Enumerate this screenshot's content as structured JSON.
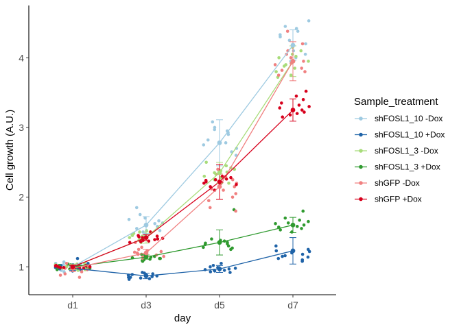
{
  "chart_data": {
    "type": "line",
    "title": "",
    "xlabel": "day",
    "ylabel": "Cell growth (A.U.)",
    "categories": [
      "d1",
      "d3",
      "d5",
      "d7"
    ],
    "ylim": [
      0.6,
      4.75
    ],
    "yticks": [
      1,
      2,
      3,
      4
    ],
    "grid": false,
    "legend": {
      "title": "Sample_treatment",
      "placement": "right"
    },
    "series": [
      {
        "name": "shFOSL1_10 -Dox",
        "color": "#9ecae1",
        "mean": [
          1.0,
          1.6,
          2.78,
          4.18
        ],
        "err": [
          0.04,
          0.12,
          0.33,
          0.22
        ],
        "points": [
          [
            0.97,
            1.01,
            1.03,
            1.05,
            0.95,
            0.99,
            1.02,
            1.07,
            0.93,
            1.0,
            1.04,
            0.98
          ],
          [
            1.85,
            1.75,
            1.68,
            1.63,
            1.58,
            1.55,
            1.52,
            1.5,
            1.47,
            1.62,
            1.66,
            1.7
          ],
          [
            3.0,
            2.97,
            2.95,
            2.93,
            2.9,
            2.75,
            2.7,
            2.65,
            2.6,
            2.78,
            3.08,
            2.82
          ],
          [
            4.53,
            4.45,
            4.42,
            4.38,
            4.3,
            4.2,
            4.1,
            4.05,
            4.0,
            3.95,
            4.33,
            4.25
          ]
        ]
      },
      {
        "name": "shFOSL1_10 +Dox",
        "color": "#1f63a8",
        "mean": [
          0.98,
          0.87,
          0.97,
          1.23
        ],
        "err": [
          0.03,
          0.04,
          0.05,
          0.19
        ],
        "points": [
          [
            0.96,
            0.98,
            1.0,
            1.02,
            0.95,
            1.12,
            0.97,
            1.03,
            0.99,
            1.05,
            0.94,
            1.01
          ],
          [
            0.82,
            0.84,
            0.85,
            0.86,
            0.88,
            0.9,
            0.92,
            0.87,
            0.83,
            0.91,
            0.85,
            0.89
          ],
          [
            0.92,
            0.94,
            0.95,
            0.96,
            0.98,
            1.0,
            1.02,
            1.05,
            0.93,
            0.97,
            0.99,
            0.95
          ],
          [
            1.08,
            1.12,
            1.15,
            1.18,
            1.2,
            1.22,
            1.25,
            1.3,
            1.14,
            1.16,
            1.1,
            1.23
          ]
        ]
      },
      {
        "name": "shFOSL1_3 -Dox",
        "color": "#a8dc7a",
        "mean": [
          1.0,
          1.42,
          2.35,
          3.95
        ],
        "err": [
          0.04,
          0.08,
          0.15,
          0.22
        ],
        "points": [
          [
            0.99,
            1.0,
            1.02,
            1.04,
            0.96,
            0.98,
            1.05,
            1.01,
            0.97,
            1.03,
            1.0,
            0.95
          ],
          [
            1.38,
            1.4,
            1.43,
            1.45,
            1.48,
            1.5,
            1.35,
            1.42,
            1.46,
            1.39,
            1.52,
            1.44
          ],
          [
            2.25,
            2.3,
            2.35,
            2.38,
            2.4,
            2.42,
            2.28,
            2.33,
            2.45,
            2.36,
            2.2,
            2.5
          ],
          [
            3.72,
            3.8,
            3.85,
            3.9,
            3.95,
            4.0,
            4.05,
            4.1,
            4.15,
            3.75,
            3.88,
            4.02
          ]
        ]
      },
      {
        "name": "shFOSL1_3 +Dox",
        "color": "#2f9a2f",
        "mean": [
          1.0,
          1.14,
          1.35,
          1.6
        ],
        "err": [
          0.03,
          0.03,
          0.18,
          0.11
        ],
        "points": [
          [
            0.98,
            1.0,
            1.01,
            1.03,
            0.97,
            0.99,
            1.02,
            1.0,
            0.98,
            1.04,
            0.96,
            1.01
          ],
          [
            1.08,
            1.1,
            1.12,
            1.14,
            1.16,
            1.18,
            1.13,
            1.11,
            1.15,
            1.09,
            1.17,
            1.12
          ],
          [
            1.82,
            1.38,
            1.35,
            1.33,
            1.3,
            1.28,
            1.25,
            1.4,
            1.37,
            1.32,
            1.27,
            1.34
          ],
          [
            1.5,
            1.55,
            1.58,
            1.6,
            1.62,
            1.65,
            1.7,
            1.8,
            1.53,
            1.57,
            1.63,
            1.67
          ]
        ]
      },
      {
        "name": "shGFP -Dox",
        "color": "#f08080",
        "mean": [
          0.98,
          1.2,
          2.15,
          3.95
        ],
        "err": [
          0.05,
          0.05,
          0.18,
          0.28
        ],
        "points": [
          [
            0.85,
            0.9,
            0.95,
            0.98,
            1.0,
            1.02,
            0.93,
            0.97,
            1.05,
            0.96,
            0.88,
            1.01
          ],
          [
            1.12,
            1.15,
            1.18,
            1.2,
            1.22,
            1.25,
            1.28,
            1.35,
            1.17,
            1.21,
            1.14,
            1.23
          ],
          [
            1.8,
            1.85,
            2.0,
            2.05,
            2.1,
            2.15,
            2.2,
            2.25,
            2.3,
            2.4,
            2.12,
            1.95
          ],
          [
            4.38,
            4.2,
            4.05,
            3.95,
            3.9,
            3.85,
            3.8,
            3.75,
            4.1,
            4.0,
            3.82,
            3.92
          ]
        ]
      },
      {
        "name": "shGFP +Dox",
        "color": "#d7001c",
        "mean": [
          1.0,
          1.42,
          2.22,
          3.25
        ],
        "err": [
          0.02,
          0.04,
          0.25,
          0.16
        ],
        "points": [
          [
            0.99,
            1.0,
            1.01,
            1.02,
            0.98,
            1.0,
            1.03,
            0.99,
            1.01,
            1.0,
            0.98,
            1.02
          ],
          [
            1.35,
            1.38,
            1.4,
            1.42,
            1.45,
            1.5,
            1.37,
            1.43,
            1.41,
            1.39,
            1.44,
            1.36
          ],
          [
            2.15,
            2.2,
            2.22,
            2.25,
            2.28,
            2.1,
            2.18,
            2.3,
            2.24,
            2.19,
            2.26,
            2.21
          ],
          [
            3.15,
            3.2,
            3.28,
            3.32,
            3.35,
            3.45,
            3.52,
            3.3,
            3.22,
            3.18,
            3.25,
            3.4
          ]
        ]
      }
    ]
  }
}
